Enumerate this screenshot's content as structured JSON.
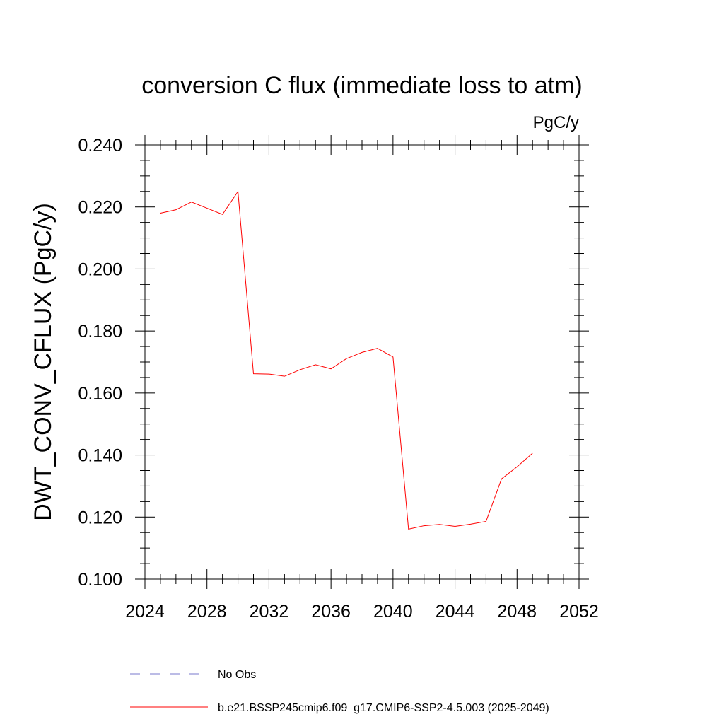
{
  "chart_data": {
    "type": "line",
    "title": "conversion C flux (immediate loss to atm)",
    "units": "PgC/y",
    "xlabel": "",
    "ylabel": "DWT_CONV_CFLUX  (PgC/y)",
    "xlim": [
      2024,
      2052
    ],
    "ylim": [
      0.1,
      0.24
    ],
    "x_ticks": [
      "2024",
      "2028",
      "2032",
      "2036",
      "2040",
      "2044",
      "2048",
      "2052"
    ],
    "x_tick_values": [
      2024,
      2028,
      2032,
      2036,
      2040,
      2044,
      2048,
      2052
    ],
    "y_ticks": [
      "0.100",
      "0.120",
      "0.140",
      "0.160",
      "0.180",
      "0.200",
      "0.220",
      "0.240"
    ],
    "y_tick_values": [
      0.1,
      0.12,
      0.14,
      0.16,
      0.18,
      0.2,
      0.22,
      0.24
    ],
    "grid": false,
    "legend_position": "bottom",
    "series": [
      {
        "name": "b.e21.BSSP245cmip6.f09_g17.CMIP6-SSP2-4.5.003 (2025-2049)",
        "color": "#ff0000",
        "style": "solid",
        "x": [
          2025,
          2026,
          2027,
          2028,
          2029,
          2030,
          2031,
          2032,
          2033,
          2034,
          2035,
          2036,
          2037,
          2038,
          2039,
          2040,
          2041,
          2042,
          2043,
          2044,
          2045,
          2046,
          2047,
          2048,
          2049
        ],
        "values": [
          0.218,
          0.2191,
          0.2216,
          0.2196,
          0.2176,
          0.225,
          0.1662,
          0.1661,
          0.1654,
          0.1675,
          0.1691,
          0.1678,
          0.1711,
          0.1731,
          0.1744,
          0.1716,
          0.1161,
          0.1172,
          0.1176,
          0.117,
          0.1177,
          0.1186,
          0.1323,
          0.1362,
          0.1406
        ]
      }
    ],
    "legend": [
      {
        "label": "No Obs",
        "color": "#7a7acc",
        "style": "dashed"
      },
      {
        "label": "b.e21.BSSP245cmip6.f09_g17.CMIP6-SSP2-4.5.003 (2025-2049)",
        "color": "#ff0000",
        "style": "solid"
      }
    ]
  }
}
